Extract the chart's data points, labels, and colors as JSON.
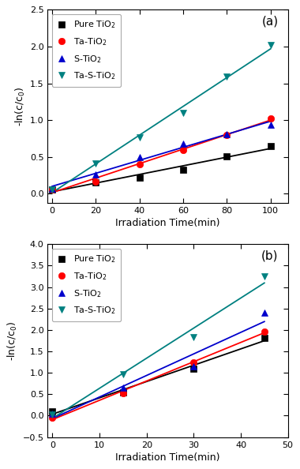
{
  "panel_a": {
    "x": [
      0,
      20,
      40,
      60,
      80,
      100
    ],
    "pure_tio2": [
      0.06,
      0.16,
      0.22,
      0.33,
      0.51,
      0.65
    ],
    "ta_tio2": [
      0.06,
      0.17,
      0.4,
      0.6,
      0.8,
      1.02
    ],
    "s_tio2": [
      0.07,
      0.26,
      0.5,
      0.68,
      0.81,
      0.94
    ],
    "ta_s_tio2": [
      0.06,
      0.41,
      0.77,
      1.1,
      1.59,
      2.02
    ],
    "xlim": [
      -2,
      108
    ],
    "ylim": [
      -0.12,
      2.5
    ],
    "xticks": [
      0,
      20,
      40,
      60,
      80,
      100
    ],
    "yticks": [
      0.0,
      0.5,
      1.0,
      1.5,
      2.0,
      2.5
    ],
    "xlabel": "Irradiation Time(min)",
    "ylabel": "-ln(c/c$_0$)",
    "label": "(a)"
  },
  "panel_b": {
    "x": [
      0,
      15,
      30,
      45
    ],
    "pure_tio2": [
      0.1,
      0.55,
      1.1,
      1.82
    ],
    "ta_tio2": [
      -0.05,
      0.53,
      1.25,
      1.96
    ],
    "s_tio2": [
      0.05,
      0.66,
      1.15,
      2.4
    ],
    "ta_s_tio2": [
      0.03,
      0.96,
      1.83,
      3.25
    ],
    "xlim": [
      -1,
      50
    ],
    "ylim": [
      -0.5,
      4.0
    ],
    "xticks": [
      0,
      10,
      20,
      30,
      40,
      50
    ],
    "yticks": [
      -0.5,
      0.0,
      0.5,
      1.0,
      1.5,
      2.0,
      2.5,
      3.0,
      3.5,
      4.0
    ],
    "xlabel": "Irradiation Time(min)",
    "ylabel": "-ln(c/c$_0$)",
    "label": "(b)"
  },
  "colors": {
    "pure_tio2": "#000000",
    "ta_tio2": "#ff0000",
    "s_tio2": "#0000cc",
    "ta_s_tio2": "#008080"
  },
  "markers": {
    "pure_tio2": "s",
    "ta_tio2": "o",
    "s_tio2": "^",
    "ta_s_tio2": "v"
  },
  "legend_labels": {
    "pure_tio2": "Pure TiO$_2$",
    "ta_tio2": "Ta-TiO$_2$",
    "s_tio2": "S-TiO$_2$",
    "ta_s_tio2": "Ta-S-TiO$_2$"
  },
  "markersize": 6,
  "linewidth": 1.3
}
